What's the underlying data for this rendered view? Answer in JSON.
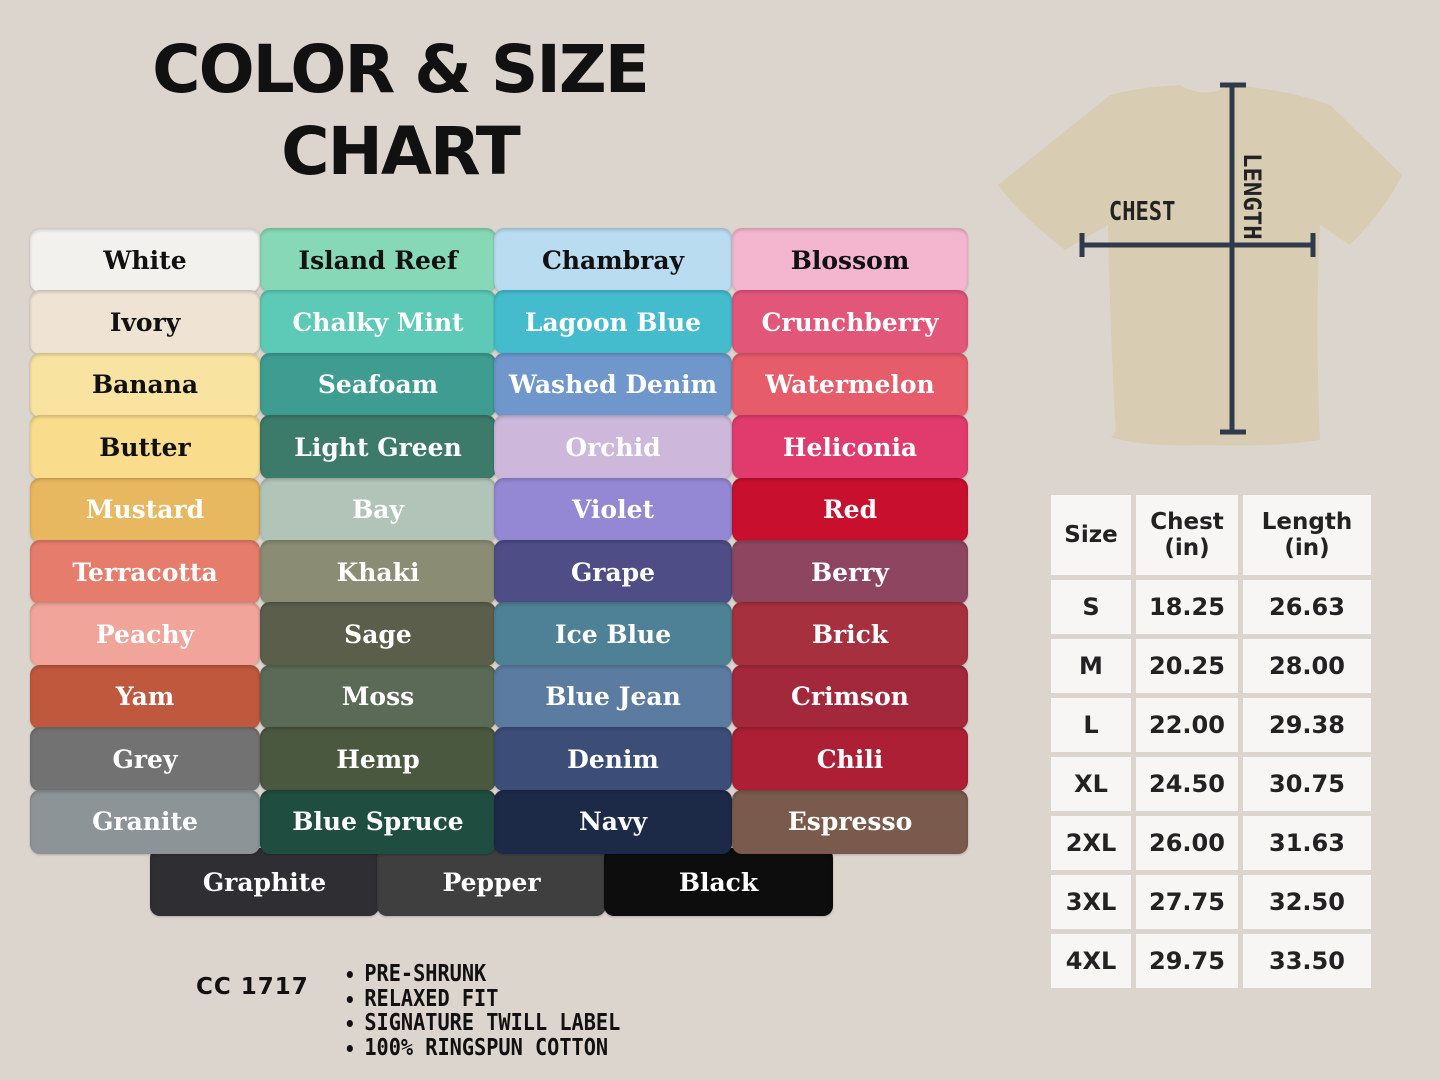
{
  "title": {
    "line1": "COLOR & SIZE",
    "line2": "CHART"
  },
  "colors": [
    {
      "name": "White",
      "hex": "#f3f1ee",
      "text": "#111"
    },
    {
      "name": "Ivory",
      "hex": "#efe3d3",
      "text": "#111"
    },
    {
      "name": "Banana",
      "hex": "#f8e3a0",
      "text": "#111"
    },
    {
      "name": "Butter",
      "hex": "#f9dc8c",
      "text": "#111"
    },
    {
      "name": "Mustard",
      "hex": "#e8b860",
      "text": "#fff"
    },
    {
      "name": "Terracotta",
      "hex": "#e57c6c",
      "text": "#fff"
    },
    {
      "name": "Peachy",
      "hex": "#f1a59a",
      "text": "#fff"
    },
    {
      "name": "Yam",
      "hex": "#c0583e",
      "text": "#fff"
    },
    {
      "name": "Grey",
      "hex": "#727272",
      "text": "#fff"
    },
    {
      "name": "Granite",
      "hex": "#8d9498",
      "text": "#fff"
    },
    {
      "name": "Island Reef",
      "hex": "#86d8b7",
      "text": "#111"
    },
    {
      "name": "Chalky Mint",
      "hex": "#5ccab7",
      "text": "#fff"
    },
    {
      "name": "Seafoam",
      "hex": "#3e9c91",
      "text": "#fff"
    },
    {
      "name": "Light Green",
      "hex": "#3c7a6a",
      "text": "#fff"
    },
    {
      "name": "Bay",
      "hex": "#b2c4b8",
      "text": "#fff"
    },
    {
      "name": "Khaki",
      "hex": "#8a8c74",
      "text": "#fff"
    },
    {
      "name": "Sage",
      "hex": "#5a5e4a",
      "text": "#fff"
    },
    {
      "name": "Moss",
      "hex": "#5a6a56",
      "text": "#fff"
    },
    {
      "name": "Hemp",
      "hex": "#4a5840",
      "text": "#fff"
    },
    {
      "name": "Blue Spruce",
      "hex": "#1f4d40",
      "text": "#fff"
    },
    {
      "name": "Chambray",
      "hex": "#b9dcf0",
      "text": "#111"
    },
    {
      "name": "Lagoon Blue",
      "hex": "#44bccd",
      "text": "#fff"
    },
    {
      "name": "Washed Denim",
      "hex": "#6f97cc",
      "text": "#fff"
    },
    {
      "name": "Orchid",
      "hex": "#cdb8dc",
      "text": "#fff"
    },
    {
      "name": "Violet",
      "hex": "#9487d3",
      "text": "#fff"
    },
    {
      "name": "Grape",
      "hex": "#4e4d86",
      "text": "#fff"
    },
    {
      "name": "Ice Blue",
      "hex": "#4f8196",
      "text": "#fff"
    },
    {
      "name": "Blue Jean",
      "hex": "#5c7ba0",
      "text": "#fff"
    },
    {
      "name": "Denim",
      "hex": "#3c4d78",
      "text": "#fff"
    },
    {
      "name": "Navy",
      "hex": "#1c2a48",
      "text": "#fff"
    },
    {
      "name": "Blossom",
      "hex": "#f4b6cf",
      "text": "#111"
    },
    {
      "name": "Crunchberry",
      "hex": "#e2567a",
      "text": "#fff"
    },
    {
      "name": "Watermelon",
      "hex": "#e65c6a",
      "text": "#fff"
    },
    {
      "name": "Heliconia",
      "hex": "#e13b6e",
      "text": "#fff"
    },
    {
      "name": "Red",
      "hex": "#c8102e",
      "text": "#fff"
    },
    {
      "name": "Berry",
      "hex": "#8e4660",
      "text": "#fff"
    },
    {
      "name": "Brick",
      "hex": "#a6303e",
      "text": "#fff"
    },
    {
      "name": "Crimson",
      "hex": "#a3283c",
      "text": "#fff"
    },
    {
      "name": "Chili",
      "hex": "#ad1f35",
      "text": "#fff"
    },
    {
      "name": "Espresso",
      "hex": "#7a5a4c",
      "text": "#fff"
    },
    {
      "name": "Graphite",
      "hex": "#2f2f33",
      "text": "#fff"
    },
    {
      "name": "Pepper",
      "hex": "#3f3f3f",
      "text": "#fff"
    },
    {
      "name": "Black",
      "hex": "#0d0d0d",
      "text": "#fff"
    }
  ],
  "diagram": {
    "chest_label": "CHEST",
    "length_label": "LENGTH",
    "shirt_color": "#d8cdb2",
    "line_color": "#2f3b4b"
  },
  "size_table": {
    "headers": [
      "Size",
      "Chest\n(in)",
      "Length\n(in)"
    ],
    "rows": [
      [
        "S",
        "18.25",
        "26.63"
      ],
      [
        "M",
        "20.25",
        "28.00"
      ],
      [
        "L",
        "22.00",
        "29.38"
      ],
      [
        "XL",
        "24.50",
        "30.75"
      ],
      [
        "2XL",
        "26.00",
        "31.63"
      ],
      [
        "3XL",
        "27.75",
        "32.50"
      ],
      [
        "4XL",
        "29.75",
        "33.50"
      ]
    ]
  },
  "product_code": "CC 1717",
  "features": [
    "PRE-SHRUNK",
    "RELAXED FIT",
    "SIGNATURE TWILL LABEL",
    "100% RINGSPUN COTTON"
  ]
}
